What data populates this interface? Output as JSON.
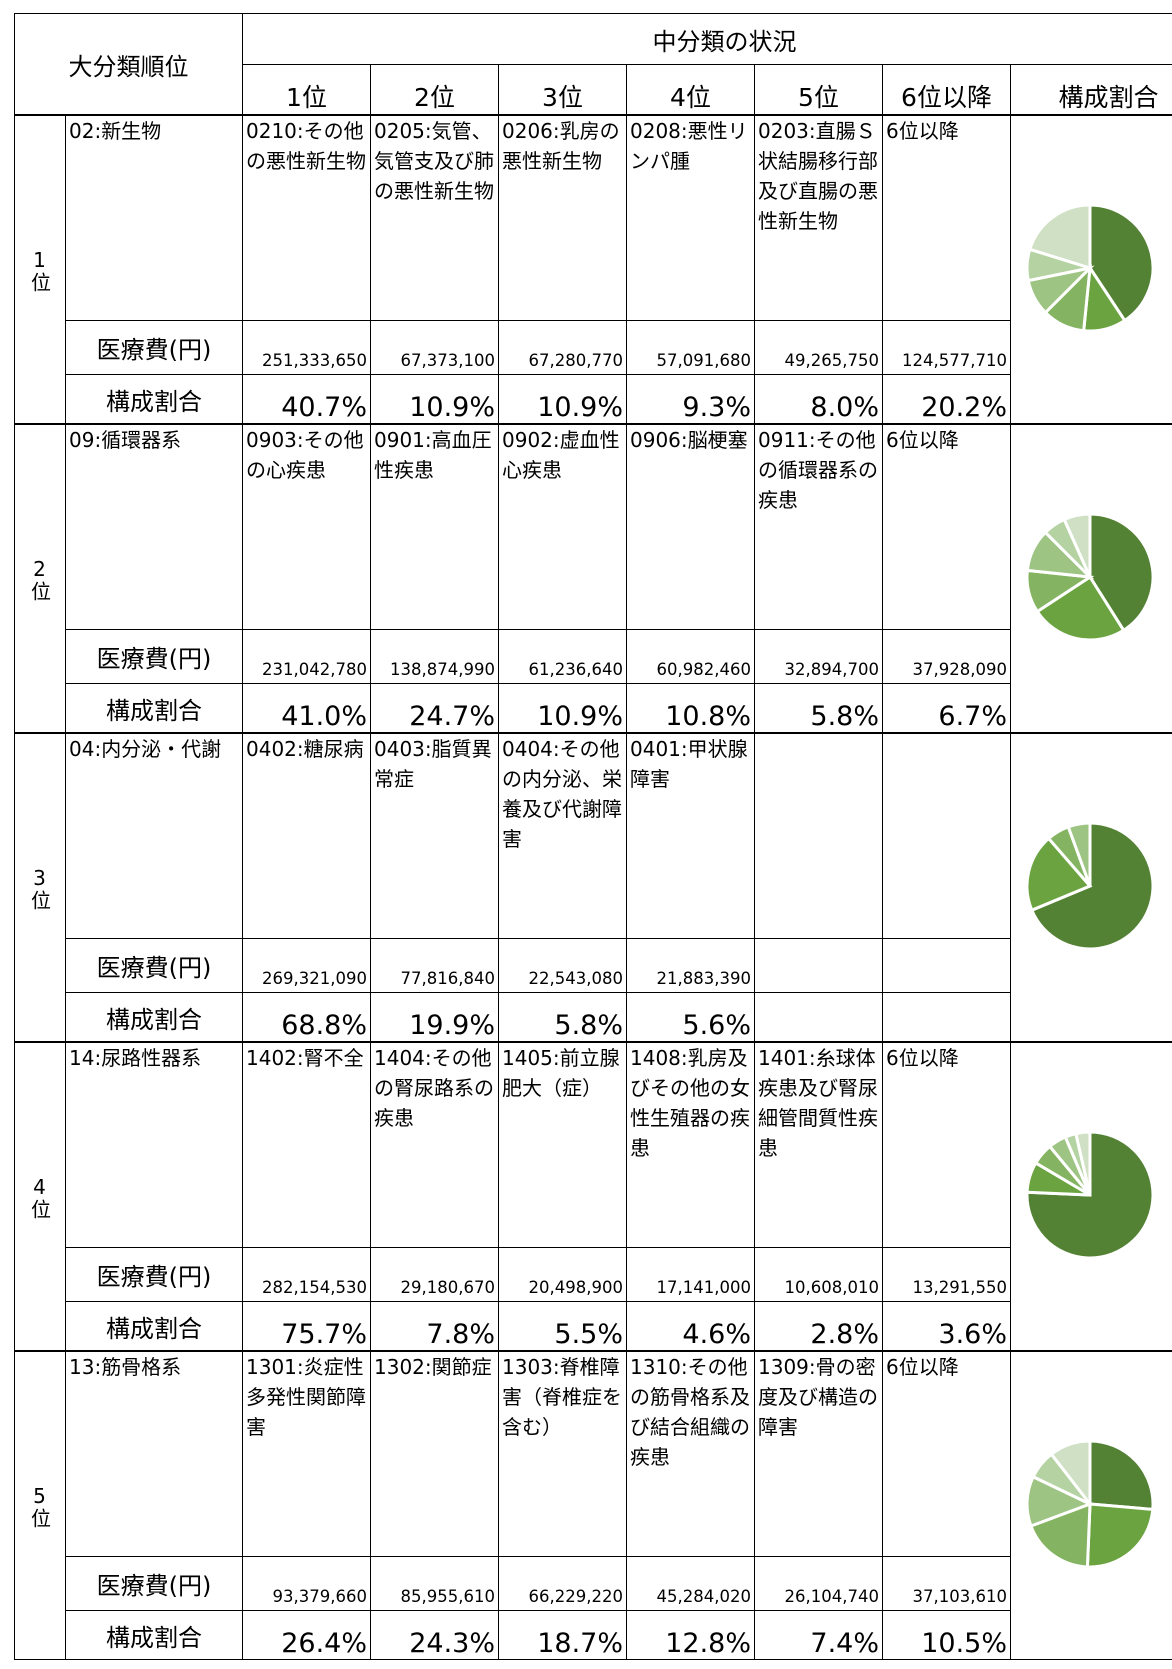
{
  "header": {
    "major": "大分類順位",
    "middle": "中分類の状況",
    "columns": [
      "1位",
      "2位",
      "3位",
      "4位",
      "5位",
      "6位以降",
      "構成割合"
    ]
  },
  "row_labels": {
    "cost": "医療費(円)",
    "share": "構成割合"
  },
  "pie_colors": [
    "#548235",
    "#6aa33f",
    "#84b462",
    "#9dc483",
    "#b5d3a2",
    "#cfe0c4"
  ],
  "blocks": [
    {
      "rank": "1位",
      "category": "02:新生物",
      "items": [
        {
          "name": "0210:その他の悪性新生物",
          "cost": "251,333,650",
          "share": 40.7,
          "share_label": "40.7%"
        },
        {
          "name": "0205:気管、気管支及び肺の悪性新生物",
          "cost": "67,373,100",
          "share": 10.9,
          "share_label": "10.9%"
        },
        {
          "name": "0206:乳房の悪性新生物",
          "cost": "67,280,770",
          "share": 10.9,
          "share_label": "10.9%"
        },
        {
          "name": "0208:悪性リンパ腫",
          "cost": "57,091,680",
          "share": 9.3,
          "share_label": "9.3%"
        },
        {
          "name": "0203:直腸Ｓ状結腸移行部及び直腸の悪性新生物",
          "cost": "49,265,750",
          "share": 8.0,
          "share_label": "8.0%"
        },
        {
          "name": "6位以降",
          "cost": "124,577,710",
          "share": 20.2,
          "share_label": "20.2%"
        }
      ]
    },
    {
      "rank": "2位",
      "category": "09:循環器系",
      "items": [
        {
          "name": "0903:その他の心疾患",
          "cost": "231,042,780",
          "share": 41.0,
          "share_label": "41.0%"
        },
        {
          "name": "0901:高血圧性疾患",
          "cost": "138,874,990",
          "share": 24.7,
          "share_label": "24.7%"
        },
        {
          "name": "0902:虚血性心疾患",
          "cost": "61,236,640",
          "share": 10.9,
          "share_label": "10.9%"
        },
        {
          "name": "0906:脳梗塞",
          "cost": "60,982,460",
          "share": 10.8,
          "share_label": "10.8%"
        },
        {
          "name": "0911:その他の循環器系の疾患",
          "cost": "32,894,700",
          "share": 5.8,
          "share_label": "5.8%"
        },
        {
          "name": "6位以降",
          "cost": "37,928,090",
          "share": 6.7,
          "share_label": "6.7%"
        }
      ]
    },
    {
      "rank": "3位",
      "category": "04:内分泌・代謝",
      "items": [
        {
          "name": "0402:糖尿病",
          "cost": "269,321,090",
          "share": 68.8,
          "share_label": "68.8%"
        },
        {
          "name": "0403:脂質異常症",
          "cost": "77,816,840",
          "share": 19.9,
          "share_label": "19.9%"
        },
        {
          "name": "0404:その他の内分泌、栄養及び代謝障害",
          "cost": "22,543,080",
          "share": 5.8,
          "share_label": "5.8%"
        },
        {
          "name": "0401:甲状腺障害",
          "cost": "21,883,390",
          "share": 5.6,
          "share_label": "5.6%"
        }
      ]
    },
    {
      "rank": "4位",
      "category": "14:尿路性器系",
      "items": [
        {
          "name": "1402:腎不全",
          "cost": "282,154,530",
          "share": 75.7,
          "share_label": "75.7%"
        },
        {
          "name": "1404:その他の腎尿路系の疾患",
          "cost": "29,180,670",
          "share": 7.8,
          "share_label": "7.8%"
        },
        {
          "name": "1405:前立腺肥大（症）",
          "cost": "20,498,900",
          "share": 5.5,
          "share_label": "5.5%"
        },
        {
          "name": "1408:乳房及びその他の女性生殖器の疾患",
          "cost": "17,141,000",
          "share": 4.6,
          "share_label": "4.6%"
        },
        {
          "name": "1401:糸球体疾患及び腎尿細管間質性疾患",
          "cost": "10,608,010",
          "share": 2.8,
          "share_label": "2.8%"
        },
        {
          "name": "6位以降",
          "cost": "13,291,550",
          "share": 3.6,
          "share_label": "3.6%"
        }
      ]
    },
    {
      "rank": "5位",
      "category": "13:筋骨格系",
      "items": [
        {
          "name": "1301:炎症性多発性関節障害",
          "cost": "93,379,660",
          "share": 26.4,
          "share_label": "26.4%"
        },
        {
          "name": "1302:関節症",
          "cost": "85,955,610",
          "share": 24.3,
          "share_label": "24.3%"
        },
        {
          "name": "1303:脊椎障害（脊椎症を含む）",
          "cost": "66,229,220",
          "share": 18.7,
          "share_label": "18.7%"
        },
        {
          "name": "1310:その他の筋骨格系及び結合組織の疾患",
          "cost": "45,284,020",
          "share": 12.8,
          "share_label": "12.8%"
        },
        {
          "name": "1309:骨の密度及び構造の障害",
          "cost": "26,104,740",
          "share": 7.4,
          "share_label": "7.4%"
        },
        {
          "name": "6位以降",
          "cost": "37,103,610",
          "share": 10.5,
          "share_label": "10.5%"
        }
      ]
    }
  ]
}
